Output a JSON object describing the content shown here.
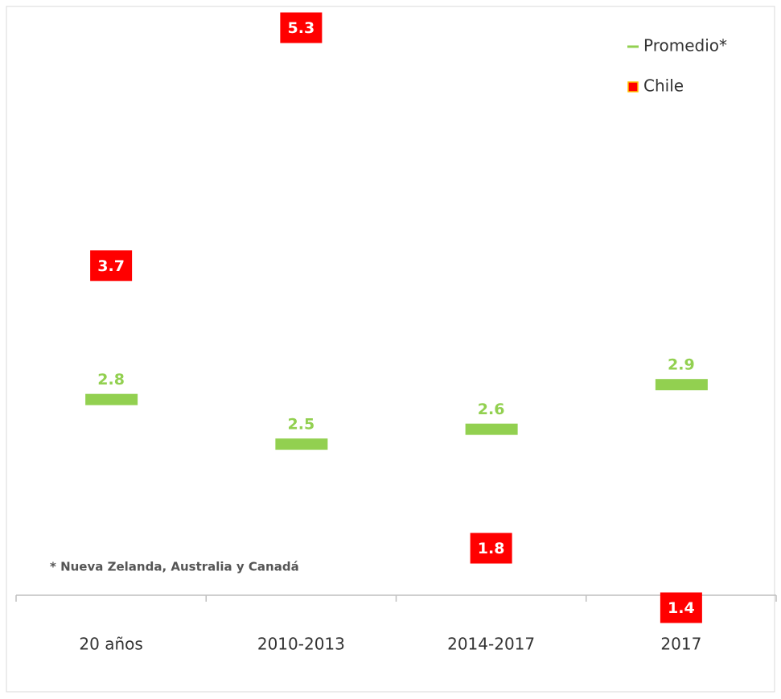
{
  "chart_data": {
    "type": "dot",
    "categories": [
      "20 años",
      "2010-2013",
      "2014-2017",
      "2017"
    ],
    "series": [
      {
        "name": "Promedio*",
        "color": "#92d050",
        "values": [
          2.8,
          2.5,
          2.6,
          2.9
        ]
      },
      {
        "name": "Chile",
        "color": "#ff0000",
        "values": [
          3.7,
          5.3,
          1.8,
          1.4
        ]
      }
    ],
    "ylim": [
      1.3,
      5.4
    ],
    "legend": "top-right",
    "annotation": "* Nueva Zelanda, Australia y Canadá"
  }
}
